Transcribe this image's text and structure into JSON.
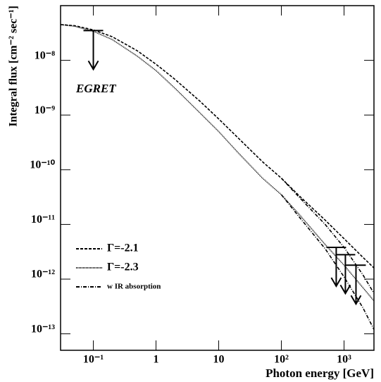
{
  "chart_data": {
    "type": "line",
    "xlabel": "Photon energy [GeV]",
    "ylabel": "Integral flux [cm⁻² sec⁻¹]",
    "annotation": "EGRET",
    "xscale": "log",
    "yscale": "log",
    "xlim": [
      0.03,
      3000
    ],
    "ylim": [
      5e-14,
      1e-07
    ],
    "xticks": [
      {
        "value": 0.1,
        "label": "10⁻¹"
      },
      1,
      10,
      {
        "value": 100,
        "label": "10²"
      },
      {
        "value": 1000,
        "label": "10³"
      }
    ],
    "yticks": [
      {
        "value": 1e-08,
        "label": "10⁻⁸"
      },
      {
        "value": 1e-09,
        "label": "10⁻⁹"
      },
      {
        "value": 1e-10,
        "label": "10⁻¹⁰"
      },
      {
        "value": 1e-11,
        "label": "10⁻¹¹"
      },
      {
        "value": 1e-12,
        "label": "10⁻¹²"
      },
      {
        "value": 1e-13,
        "label": "10⁻¹³"
      }
    ],
    "x": [
      0.03,
      0.05,
      0.1,
      0.2,
      0.5,
      1,
      2,
      5,
      10,
      20,
      50,
      100,
      200,
      500,
      1000,
      2000,
      3000
    ],
    "series": [
      {
        "name": "Γ=-2.1",
        "color": "#000000",
        "dash": "4,2",
        "values": [
          4.5e-08,
          4.3e-08,
          3.6e-08,
          2.7e-08,
          1.5e-08,
          8.5e-09,
          4.5e-09,
          1.8e-09,
          8.5e-10,
          3.9e-10,
          1.4e-10,
          7e-11,
          3.2e-11,
          1.2e-11,
          5.5e-12,
          2.5e-12,
          1.6e-12
        ]
      },
      {
        "name": "Γ=-2.3",
        "color": "#000000",
        "dash": "1,1",
        "values": [
          4.5e-08,
          4.2e-08,
          3.4e-08,
          2.4e-08,
          1.2e-08,
          6.5e-09,
          3.1e-09,
          1.1e-09,
          5e-10,
          2.1e-10,
          7e-11,
          3.5e-11,
          1.45e-11,
          4.3e-12,
          1.8e-12,
          7e-13,
          4e-13
        ]
      },
      {
        "name": "w IR absorption",
        "color": "#000000",
        "dash": "5,2,1,2",
        "values": [
          null,
          null,
          null,
          null,
          null,
          null,
          null,
          null,
          null,
          null,
          null,
          7e-11,
          3e-11,
          1e-11,
          3.8e-12,
          1.2e-12,
          5.5e-13
        ]
      },
      {
        "color": "#000000",
        "dash": "5,2,1,2",
        "values": [
          null,
          null,
          null,
          null,
          null,
          null,
          null,
          null,
          null,
          null,
          null,
          3.5e-11,
          1.3e-11,
          3.6e-12,
          1.1e-12,
          3e-13,
          1.2e-13
        ]
      }
    ],
    "upper_limits": [
      {
        "x": 0.1,
        "value": 3.5e-08
      },
      {
        "x": 750,
        "value": 3.8e-12
      },
      {
        "x": 1050,
        "value": 2.8e-12
      },
      {
        "x": 1550,
        "value": 1.8e-12
      }
    ]
  }
}
